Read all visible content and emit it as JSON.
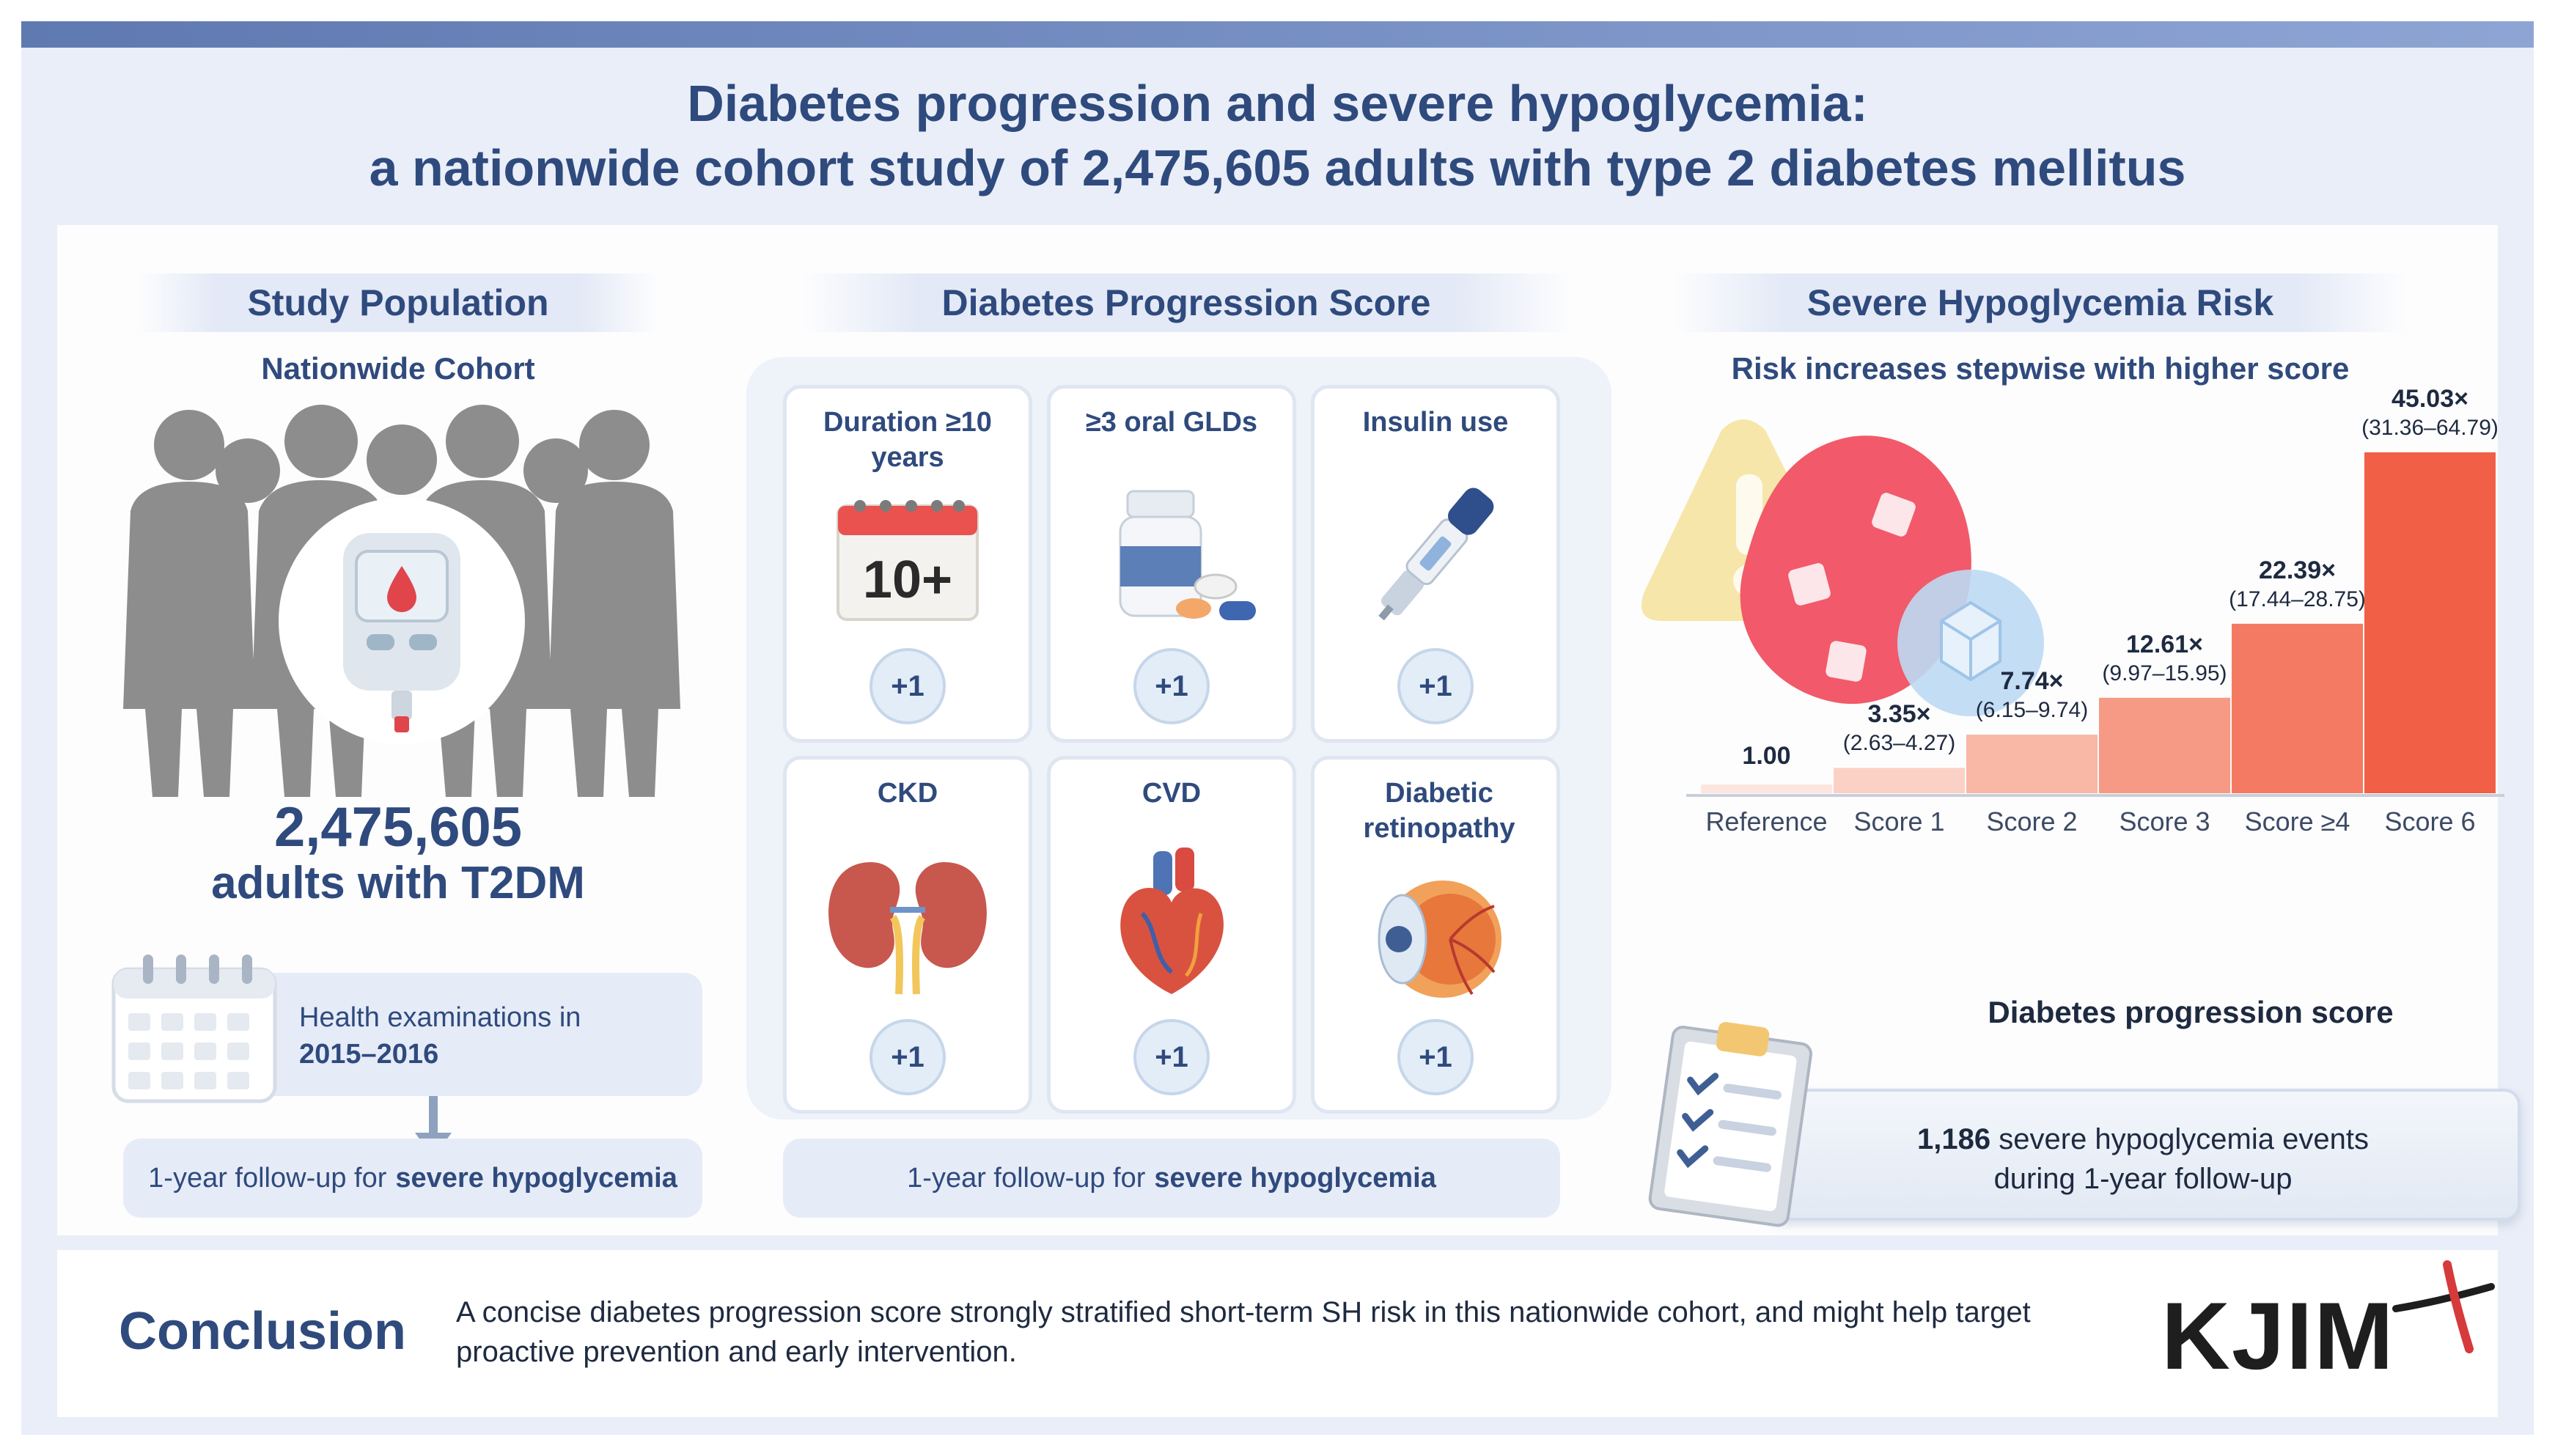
{
  "title": {
    "line1": "Diabetes progression and severe hypoglycemia:",
    "line2": "a nationwide cohort study of 2,475,605 adults with type 2 diabetes mellitus"
  },
  "population": {
    "header": "Study Population",
    "subheader": "Nationwide Cohort",
    "count": "2,475,605",
    "count_label": "adults with T2DM",
    "exam_text": "Health examinations in",
    "exam_years": "2015–2016",
    "followup_prefix": "1-year follow-up for",
    "followup_bold": "severe hypoglycemia"
  },
  "score": {
    "header": "Diabetes Progression Score",
    "components": [
      {
        "label": "Duration ≥10 years",
        "points": "+1",
        "icon": "calendar-icon",
        "badge": "10+"
      },
      {
        "label": "≥3 oral GLDs",
        "points": "+1",
        "icon": "pills-icon"
      },
      {
        "label": "Insulin use",
        "points": "+1",
        "icon": "insulin-pen-icon"
      },
      {
        "label": "CKD",
        "points": "+1",
        "icon": "kidneys-icon"
      },
      {
        "label": "CVD",
        "points": "+1",
        "icon": "heart-icon"
      },
      {
        "label": "Diabetic retinopathy",
        "points": "+1",
        "icon": "eye-icon"
      }
    ],
    "followup_prefix": "1-year follow-up for",
    "followup_bold": "severe hypoglycemia"
  },
  "risk": {
    "header": "Severe Hypoglycemia Risk",
    "subheader": "Risk increases stepwise with higher score",
    "events_count": "1,186",
    "events_text": "severe hypoglycemia events",
    "events_text2": "during 1-year follow-up"
  },
  "chart_data": {
    "type": "bar",
    "categories": [
      "Reference",
      "Score 1",
      "Score 2",
      "Score 3",
      "Score ≥4",
      "Score 6"
    ],
    "values": [
      1.0,
      3.35,
      7.74,
      12.61,
      22.39,
      45.03
    ],
    "value_labels": [
      "1.00",
      "3.35×",
      "7.74×",
      "12.61×",
      "22.39×",
      "45.03×"
    ],
    "ci_labels": [
      "",
      "(2.63–4.27)",
      "(6.15–9.74)",
      "(9.97–15.95)",
      "(17.44–28.75)",
      "(31.36–64.79)"
    ],
    "xlabel": "Diabetes progression score",
    "ylabel": "",
    "ylim": [
      0,
      45.03
    ],
    "colors": [
      "#fde6e0",
      "#fbd1c6",
      "#f9b7a6",
      "#f69a85",
      "#f47a63",
      "#f15f46"
    ]
  },
  "conclusion": {
    "label": "Conclusion",
    "text": "A concise diabetes progression score strongly stratified short-term SH risk in this nationwide cohort, and might help target proactive prevention and early intervention.",
    "logo": "KJIM"
  },
  "colors": {
    "navy": "#2f4a7d",
    "accent_red": "#d63a3a",
    "panel_bg": "#e9eef8"
  }
}
